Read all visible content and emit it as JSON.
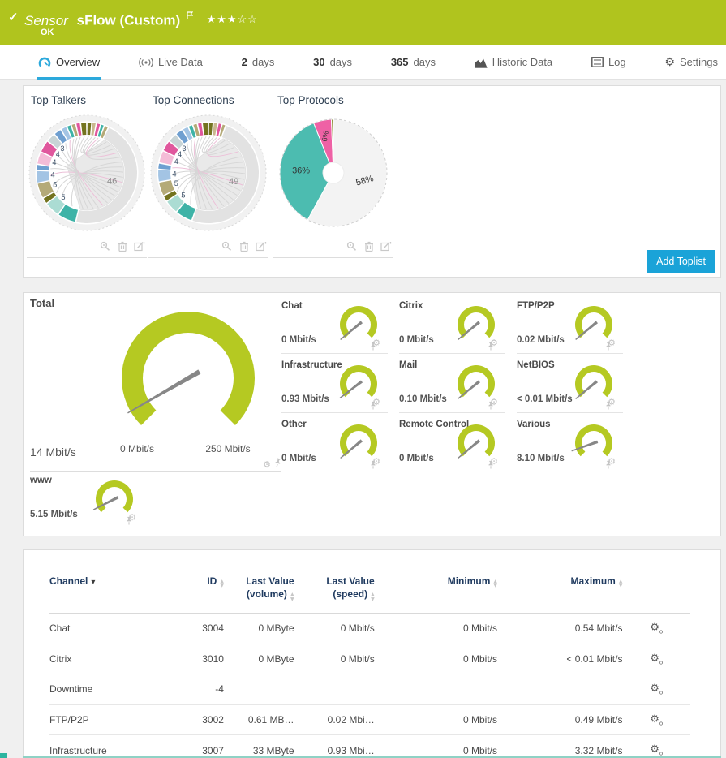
{
  "header": {
    "check_icon": "✓",
    "type_label": "Sensor",
    "title": "sFlow (Custom)",
    "rating": "★★★☆☆",
    "status": "OK"
  },
  "tabs": [
    {
      "label": "Overview",
      "active": true
    },
    {
      "label": "Live Data"
    },
    {
      "num": "2",
      "label": "days"
    },
    {
      "num": "30",
      "label": "days"
    },
    {
      "num": "365",
      "label": "days"
    },
    {
      "label": "Historic Data"
    },
    {
      "label": "Log"
    },
    {
      "label": "Settings"
    }
  ],
  "toplists": {
    "add_button": "Add Toplist"
  },
  "colors": {
    "prtg_green": "#b0c41e",
    "gauge_green": "#b5c922",
    "accent_blue": "#1aa3d8",
    "tab_active_blue": "#2ca9dc",
    "pie_teal": "#4cbcb0",
    "pie_pink": "#ee61a5",
    "pie_gray": "#f3f3f3",
    "pie_olive": "#8b8b30",
    "needle_gray": "#878787"
  },
  "chart_data": [
    {
      "id": "top_talkers",
      "type": "pie",
      "variant": "chord-diagram",
      "title": "Top Talkers",
      "unit": "percent",
      "segments": [
        {
          "v": 1.6,
          "c": "#73731f"
        },
        {
          "v": 1.4,
          "c": "#c9b88f"
        },
        {
          "v": 1.4,
          "c": "#e0579d"
        },
        {
          "v": 1.2,
          "c": "#3eb3a7"
        },
        {
          "v": 1.4,
          "c": "#b4aa78"
        },
        {
          "v": 46,
          "c": "#e2e2e2",
          "l": "46"
        },
        {
          "v": 6,
          "c": "#3eb3a7"
        },
        {
          "v": 5,
          "c": "#abdcd3",
          "l": "5"
        },
        {
          "v": 2,
          "c": "#73731f"
        },
        {
          "v": 5,
          "c": "#b4aa78",
          "l": "5"
        },
        {
          "v": 4,
          "c": "#a3c4e4",
          "l": "4"
        },
        {
          "v": 2,
          "c": "#6f9fd0"
        },
        {
          "v": 4,
          "c": "#f4bcd7",
          "l": "4"
        },
        {
          "v": 4,
          "c": "#e0579d",
          "l": "4"
        },
        {
          "v": 3,
          "c": "#c8d4d6",
          "l": "3"
        },
        {
          "v": 2.5,
          "c": "#6f9fd0"
        },
        {
          "v": 2,
          "c": "#a3c4e4"
        },
        {
          "v": 1.5,
          "c": "#3eb3a7"
        },
        {
          "v": 1.5,
          "c": "#b4aa78"
        },
        {
          "v": 1.5,
          "c": "#e0579d"
        },
        {
          "v": 2,
          "c": "#73731f"
        }
      ]
    },
    {
      "id": "top_connections",
      "type": "pie",
      "variant": "chord-diagram",
      "title": "Top Connections",
      "unit": "percent",
      "segments": [
        {
          "v": 1.5,
          "c": "#73731f"
        },
        {
          "v": 1.5,
          "c": "#c9b88f"
        },
        {
          "v": 1.3,
          "c": "#e0579d"
        },
        {
          "v": 1.2,
          "c": "#b4aa78"
        },
        {
          "v": 49,
          "c": "#e2e2e2",
          "l": "49"
        },
        {
          "v": 5.5,
          "c": "#3eb3a7"
        },
        {
          "v": 4.5,
          "c": "#abdcd3",
          "l": "5"
        },
        {
          "v": 2,
          "c": "#73731f"
        },
        {
          "v": 4.5,
          "c": "#b4aa78",
          "l": "5"
        },
        {
          "v": 4,
          "c": "#a3c4e4",
          "l": "4"
        },
        {
          "v": 2,
          "c": "#6f9fd0"
        },
        {
          "v": 4,
          "c": "#f4bcd7",
          "l": "4"
        },
        {
          "v": 3.5,
          "c": "#e0579d",
          "l": "4"
        },
        {
          "v": 3,
          "c": "#c8d4d6",
          "l": "3"
        },
        {
          "v": 2.5,
          "c": "#6f9fd0"
        },
        {
          "v": 2,
          "c": "#a3c4e4"
        },
        {
          "v": 1.5,
          "c": "#3eb3a7"
        },
        {
          "v": 1.5,
          "c": "#b4aa78"
        },
        {
          "v": 1.5,
          "c": "#e0579d"
        },
        {
          "v": 2,
          "c": "#73731f"
        }
      ]
    },
    {
      "id": "top_protocols",
      "type": "pie",
      "title": "Top Protocols",
      "unit": "percent",
      "slices": [
        {
          "label": "58%",
          "value": 58,
          "c": "#f3f3f3"
        },
        {
          "label": "36%",
          "value": 36,
          "c": "#4cbcb0"
        },
        {
          "label": "6%",
          "value": 5.4,
          "c": "#ee61a5"
        },
        {
          "label": "",
          "value": 0.6,
          "c": "#8b8b30"
        }
      ]
    },
    {
      "id": "total_gauge",
      "type": "gauge",
      "title": "Total",
      "value": 14,
      "value_label": "14 Mbit/s",
      "min": 0,
      "max": 250,
      "min_label": "0 Mbit/s",
      "max_label": "250 Mbit/s",
      "color": "#b5c922"
    },
    {
      "id": "channel_gauges",
      "type": "gauge",
      "max_estimated": 100,
      "items": [
        {
          "name": "Chat",
          "value": 0,
          "value_label": "0 Mbit/s"
        },
        {
          "name": "Citrix",
          "value": 0,
          "value_label": "0 Mbit/s"
        },
        {
          "name": "FTP/P2P",
          "value": 0.02,
          "value_label": "0.02 Mbit/s"
        },
        {
          "name": "Infrastructure",
          "value": 0.93,
          "value_label": "0.93 Mbit/s"
        },
        {
          "name": "Mail",
          "value": 0.1,
          "value_label": "0.10 Mbit/s"
        },
        {
          "name": "NetBIOS",
          "value": 0.005,
          "value_label": "< 0.01 Mbit/s"
        },
        {
          "name": "Other",
          "value": 0,
          "value_label": "0 Mbit/s"
        },
        {
          "name": "Remote Control",
          "value": 0,
          "value_label": "0 Mbit/s"
        },
        {
          "name": "Various",
          "value": 8.1,
          "value_label": "8.10 Mbit/s"
        },
        {
          "name": "www",
          "value": 5.15,
          "value_label": "5.15 Mbit/s"
        }
      ]
    }
  ],
  "table": {
    "headers": {
      "channel": "Channel",
      "id": "ID",
      "last_volume": "Last Value (volume)",
      "last_speed": "Last Value (speed)",
      "min": "Minimum",
      "max": "Maximum"
    },
    "rows": [
      {
        "channel": "Chat",
        "id": "3004",
        "volume": "0 MByte",
        "speed": "0 Mbit/s",
        "min": "0 Mbit/s",
        "max": "0.54 Mbit/s"
      },
      {
        "channel": "Citrix",
        "id": "3010",
        "volume": "0 MByte",
        "speed": "0 Mbit/s",
        "min": "0 Mbit/s",
        "max": "< 0.01 Mbit/s"
      },
      {
        "channel": "Downtime",
        "id": "-4",
        "volume": "",
        "speed": "",
        "min": "",
        "max": ""
      },
      {
        "channel": "FTP/P2P",
        "id": "3002",
        "volume": "0.61 MB…",
        "speed": "0.02 Mbi…",
        "min": "0 Mbit/s",
        "max": "0.49 Mbit/s"
      },
      {
        "channel": "Infrastructure",
        "id": "3007",
        "volume": "33 MByte",
        "speed": "0.93 Mbi…",
        "min": "0 Mbit/s",
        "max": "3.32 Mbit/s"
      }
    ]
  }
}
